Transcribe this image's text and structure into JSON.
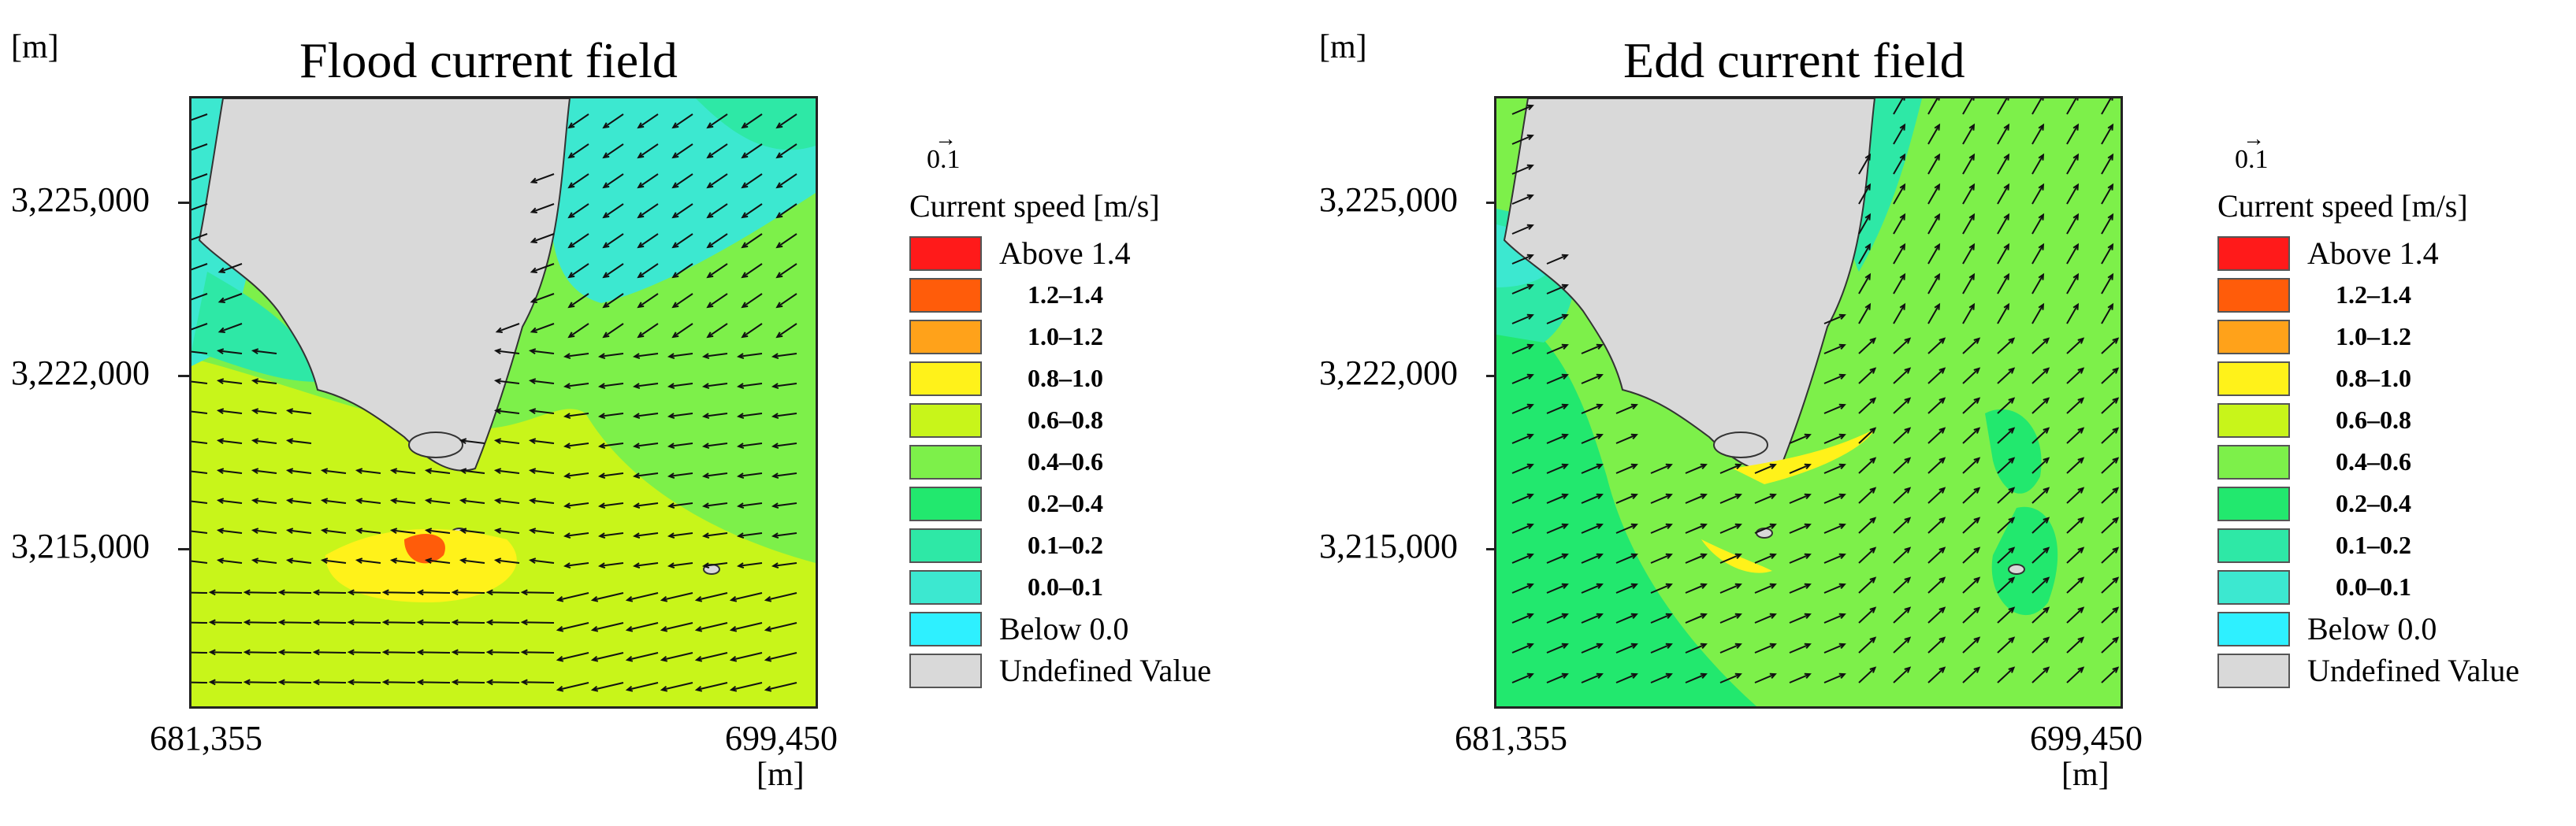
{
  "axis_unit": "[m]",
  "x_axis": {
    "min_label": "681,355",
    "max_label": "699,450"
  },
  "y_ticks": [
    "3,225,000",
    "3,222,000",
    "3,215,000"
  ],
  "legend": {
    "scale_label": "0.1",
    "title": "Current speed [m/s]",
    "items": [
      {
        "label": "Above 1.4",
        "color": "#ff1a1a"
      },
      {
        "label": "1.2–1.4",
        "color": "#ff5c0a"
      },
      {
        "label": "1.0–1.2",
        "color": "#ffa21a"
      },
      {
        "label": "0.8–1.0",
        "color": "#fff21a"
      },
      {
        "label": "0.6–0.8",
        "color": "#c8f51a"
      },
      {
        "label": "0.4–0.6",
        "color": "#7df04a"
      },
      {
        "label": "0.2–0.4",
        "color": "#22e86e"
      },
      {
        "label": "0.1–0.2",
        "color": "#2ee8a6"
      },
      {
        "label": "0.0–0.1",
        "color": "#3ce8d0"
      },
      {
        "label": "Below 0.0",
        "color": "#2ef0ff"
      },
      {
        "label": "Undefined Value",
        "color": "#d9d9d9"
      }
    ]
  },
  "panels": [
    {
      "title": "Flood current field",
      "flow_direction": "westward (from east, wrapping around the headland)"
    },
    {
      "title": "Edd current field",
      "flow_direction": "eastward / north-eastward"
    }
  ]
}
